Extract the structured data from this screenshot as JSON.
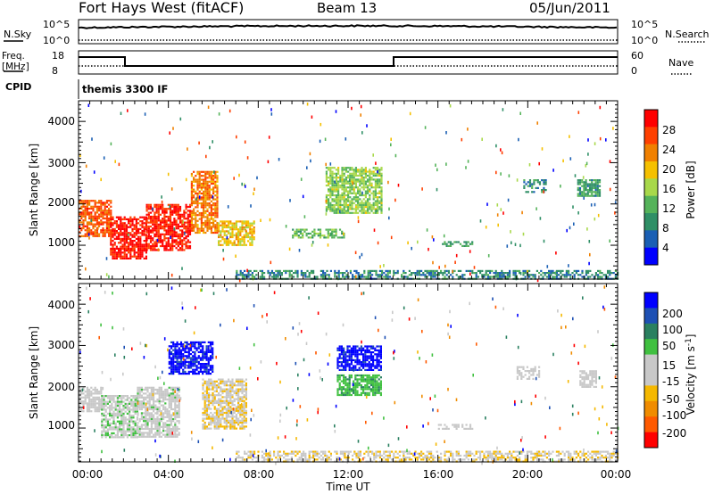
{
  "header": {
    "title": "Fort Hays West (fitACF)",
    "beam": "Beam 13",
    "date": "05/Jun/2011"
  },
  "top_panels": {
    "nsky_label": "N.Sky",
    "nsearch_label": "N.Search",
    "nsky_ticks": [
      "10^5",
      "10^0"
    ],
    "nsearch_ticks": [
      "10^5",
      "10^0"
    ],
    "freq_label": [
      "Freq.",
      "[MHz]"
    ],
    "freq_ticks": [
      "18",
      "8"
    ],
    "nave_label": "Nave",
    "nave_ticks": [
      "60",
      "0"
    ],
    "cpid_label": "CPID",
    "cpid_text": "themis 3300 IF"
  },
  "colors": {
    "power": [
      "#0000ff",
      "#1a5fb4",
      "#2f8f66",
      "#55b35a",
      "#a8d84a",
      "#f5c000",
      "#f08000",
      "#ff4000",
      "#ff0000"
    ],
    "velocity": [
      "#ff0000",
      "#ff5a00",
      "#f08c00",
      "#f5b800",
      "#c8c8c8",
      "#c8c8c8",
      "#40c040",
      "#2a8060",
      "#1e50b4",
      "#0000ff"
    ]
  },
  "chart_data": [
    {
      "type": "heatmap",
      "title": "",
      "xlabel": "",
      "ylabel": "Slant Range [km]",
      "xlim": [
        "00:00",
        "24:00"
      ],
      "ylim": [
        180,
        4500
      ],
      "yticks": [
        "4000",
        "3000",
        "2000",
        "1000"
      ],
      "colorbar_label": "Power [dB]",
      "colorbar_ticks": [
        "28",
        "24",
        "20",
        "16",
        "12",
        "8",
        "4"
      ],
      "colorbar_range": [
        0,
        30
      ],
      "regions": [
        {
          "t0": 0.0,
          "t1": 1.4,
          "r0": 1200,
          "r1": 2100,
          "value": 24
        },
        {
          "t0": 1.4,
          "t1": 3.0,
          "r0": 700,
          "r1": 1700,
          "value": 28
        },
        {
          "t0": 3.0,
          "t1": 5.0,
          "r0": 900,
          "r1": 2000,
          "value": 27
        },
        {
          "t0": 5.0,
          "t1": 6.2,
          "r0": 1300,
          "r1": 2800,
          "value": 22
        },
        {
          "t0": 6.2,
          "t1": 7.8,
          "r0": 1000,
          "r1": 1600,
          "value": 18
        },
        {
          "t0": 9.5,
          "t1": 11.8,
          "r0": 1200,
          "r1": 1400,
          "value": 12
        },
        {
          "t0": 11.0,
          "t1": 13.5,
          "r0": 1800,
          "r1": 2900,
          "value": 14
        },
        {
          "t0": 16.0,
          "t1": 17.5,
          "r0": 1000,
          "r1": 1100,
          "value": 10
        },
        {
          "t0": 19.8,
          "t1": 20.8,
          "r0": 2300,
          "r1": 2600,
          "value": 8
        },
        {
          "t0": 22.2,
          "t1": 23.2,
          "r0": 2200,
          "r1": 2600,
          "value": 9
        },
        {
          "t0": 7.0,
          "t1": 24.0,
          "r0": 200,
          "r1": 400,
          "value": 8
        }
      ]
    },
    {
      "type": "heatmap",
      "title": "",
      "xlabel": "Time UT",
      "ylabel": "Slant Range [km]",
      "xlim": [
        "00:00",
        "24:00"
      ],
      "xticks": [
        "00:00",
        "04:00",
        "08:00",
        "12:00",
        "16:00",
        "20:00",
        "00:00"
      ],
      "ylim": [
        180,
        4500
      ],
      "yticks": [
        "4000",
        "3000",
        "2000",
        "1000"
      ],
      "colorbar_label": "Velocity [m s^-1]",
      "colorbar_ticks": [
        "200",
        "100",
        "50",
        "15",
        "-15",
        "-50",
        "-100",
        "-200"
      ],
      "colorbar_range": [
        -250,
        250
      ],
      "regions": [
        {
          "t0": 0.0,
          "t1": 1.0,
          "r0": 1400,
          "r1": 2000,
          "value": 0
        },
        {
          "t0": 1.0,
          "t1": 2.6,
          "r0": 800,
          "r1": 1800,
          "value": 35
        },
        {
          "t0": 2.6,
          "t1": 4.5,
          "r0": 800,
          "r1": 2000,
          "value": 25
        },
        {
          "t0": 4.0,
          "t1": 6.0,
          "r0": 2300,
          "r1": 3100,
          "value": 220
        },
        {
          "t0": 5.5,
          "t1": 7.5,
          "r0": 1000,
          "r1": 2200,
          "value": -40
        },
        {
          "t0": 11.5,
          "t1": 13.5,
          "r0": 2400,
          "r1": 3000,
          "value": 220
        },
        {
          "t0": 11.5,
          "t1": 13.5,
          "r0": 1800,
          "r1": 2300,
          "value": 80
        },
        {
          "t0": 16.0,
          "t1": 17.5,
          "r0": 1000,
          "r1": 1100,
          "value": 0
        },
        {
          "t0": 19.5,
          "t1": 20.5,
          "r0": 2200,
          "r1": 2500,
          "value": 0
        },
        {
          "t0": 22.3,
          "t1": 23.0,
          "r0": 2000,
          "r1": 2400,
          "value": 0
        },
        {
          "t0": 7.0,
          "t1": 24.0,
          "r0": 200,
          "r1": 450,
          "value": -40
        }
      ]
    }
  ]
}
